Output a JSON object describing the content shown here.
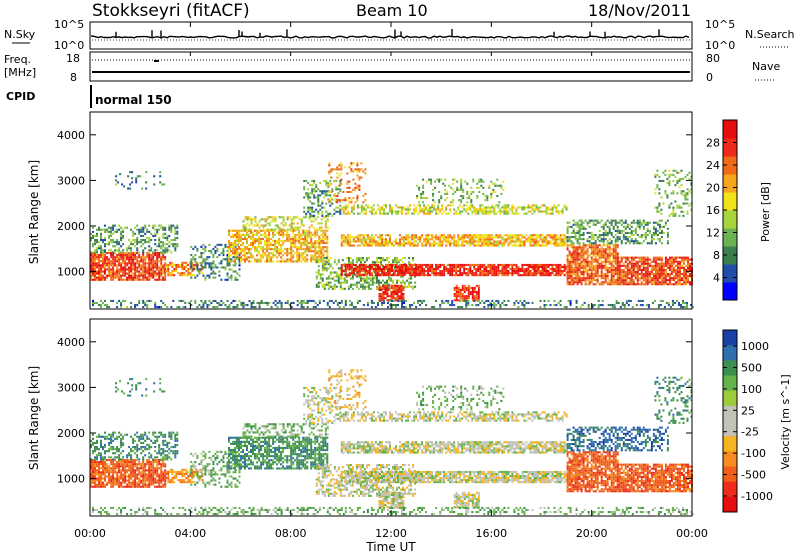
{
  "header": {
    "station": "Stokkseyri (fitACF)",
    "beam": "Beam 10",
    "date": "18/Nov/2011"
  },
  "noise_panel": {
    "left_label": "N.Sky",
    "right_label": "N.Search",
    "left_ticks": [
      "10^5",
      "10^0"
    ],
    "right_ticks": [
      "10^5",
      "10^0"
    ]
  },
  "freq_panel": {
    "left_label_1": "Freq.",
    "left_label_2": "[MHz]",
    "left_ticks": [
      "18",
      "8"
    ],
    "right_label": "Nave",
    "right_ticks": [
      "80",
      "0"
    ]
  },
  "cpid_panel": {
    "label": "CPID",
    "value": "normal 150"
  },
  "chart_data": [
    {
      "type": "heatmap",
      "name": "power",
      "ylabel": "Slant Range [km]",
      "ylim": [
        180,
        4500
      ],
      "yticks": [
        "1000",
        "2000",
        "3000",
        "4000"
      ],
      "xlim_hours": [
        0,
        24
      ],
      "colorbar_label": "Power [dB]",
      "colorbar_ticks": [
        "4",
        "8",
        "12",
        "16",
        "20",
        "24",
        "28"
      ],
      "colorbar_colors": [
        "#0000ff",
        "#1f4fa8",
        "#3c7f4f",
        "#6cb250",
        "#a7d43a",
        "#f2e21a",
        "#f7a51b",
        "#f16a1a",
        "#ee2a1a",
        "#e50d0d"
      ],
      "colorbar_range": [
        0,
        32
      ]
    },
    {
      "type": "heatmap",
      "name": "velocity",
      "ylabel": "Slant Range [km]",
      "ylim": [
        180,
        4500
      ],
      "yticks": [
        "1000",
        "2000",
        "3000",
        "4000"
      ],
      "xlim_hours": [
        0,
        24
      ],
      "xlabel": "Time UT",
      "xticks": [
        "00:00",
        "04:00",
        "08:00",
        "12:00",
        "16:00",
        "20:00",
        "00:00"
      ],
      "colorbar_label": "Velocity [m s^-1]",
      "colorbar_ticks": [
        "1000",
        "500",
        "100",
        "25",
        "-25",
        "-100",
        "-500",
        "-1000"
      ],
      "colorbar_colors": [
        "#1a3fa6",
        "#2e6fb0",
        "#3d8f4f",
        "#66b24a",
        "#9ccc3a",
        "#c2c2b8",
        "#c2c2b8",
        "#f4b51f",
        "#f58c1f",
        "#f25d1a",
        "#ee2a1a",
        "#e50d0d"
      ]
    }
  ]
}
